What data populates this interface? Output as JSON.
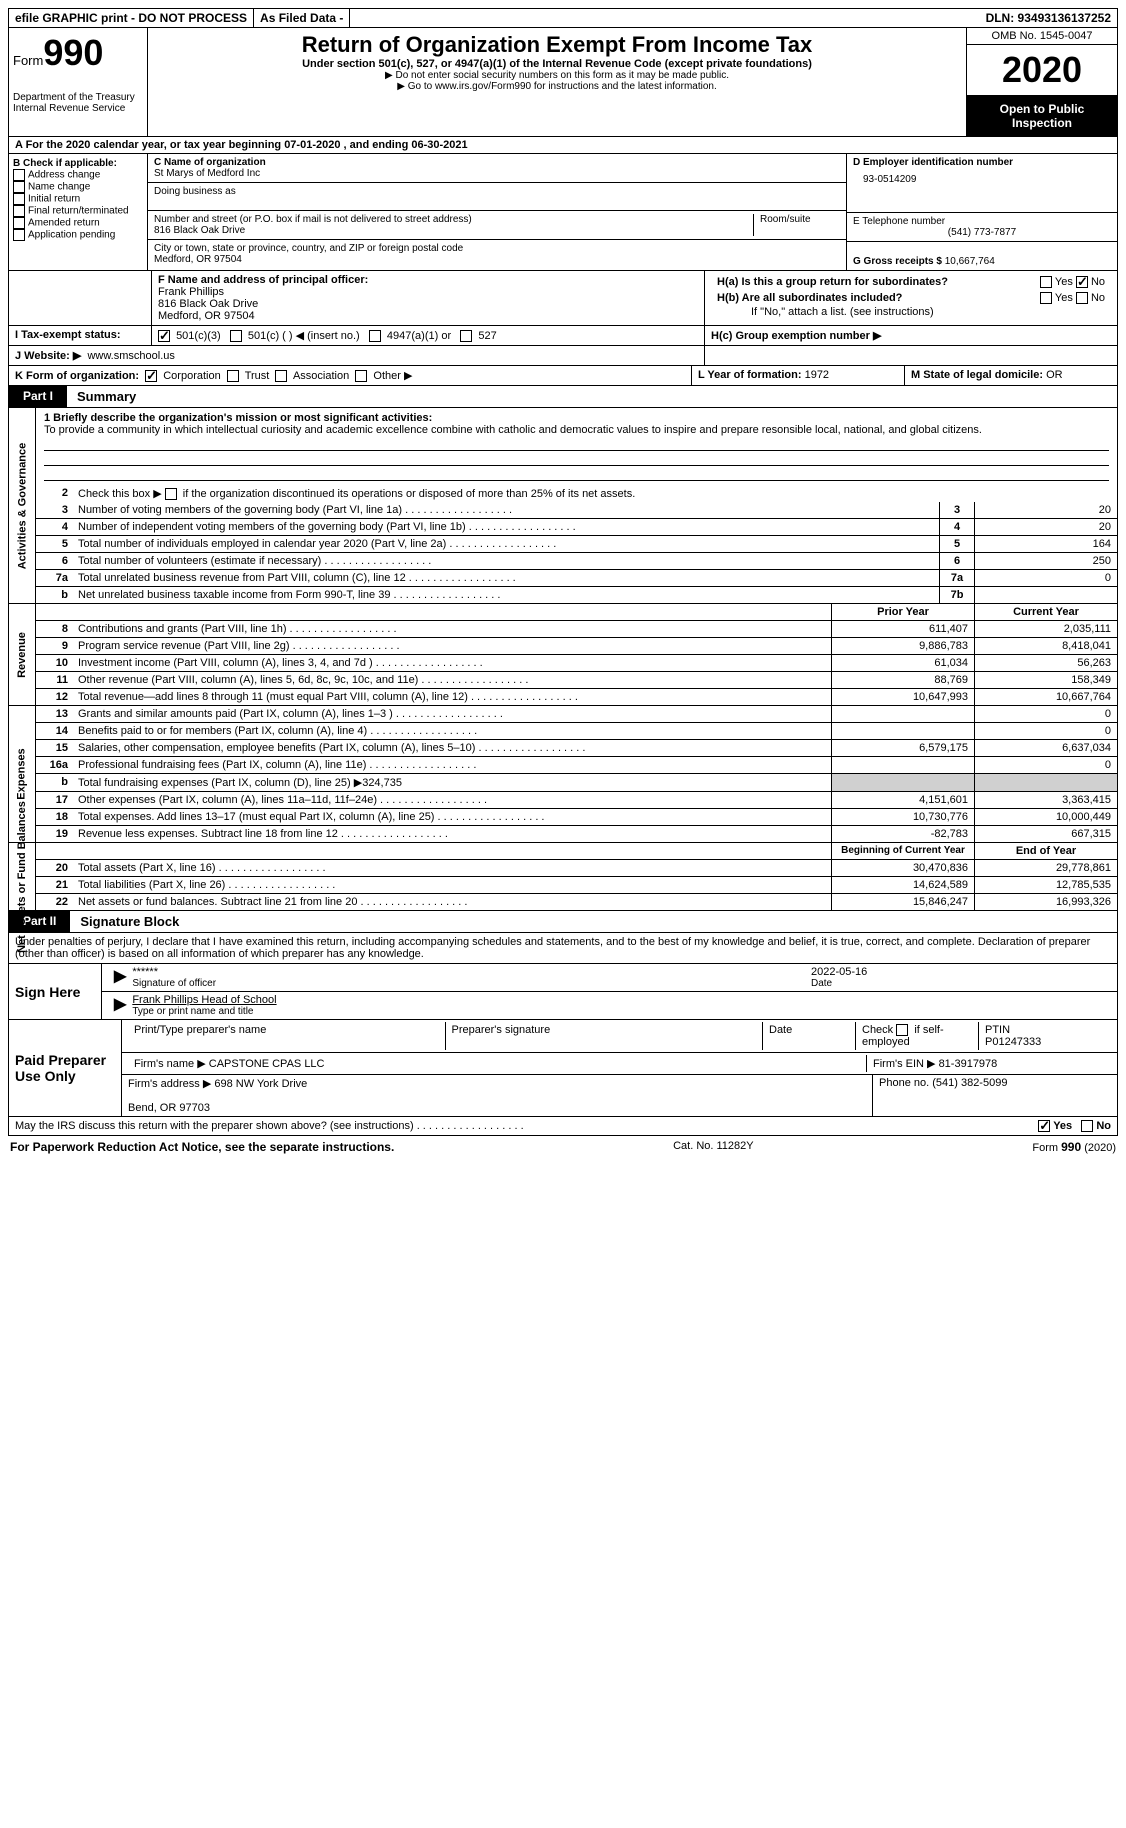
{
  "top": {
    "efile": "efile GRAPHIC print - DO NOT PROCESS",
    "asfiled": "As Filed Data -",
    "dln": "DLN: 93493136137252"
  },
  "header": {
    "form_label": "Form",
    "form_num": "990",
    "dept": "Department of the Treasury\nInternal Revenue Service",
    "title": "Return of Organization Exempt From Income Tax",
    "sub1": "Under section 501(c), 527, or 4947(a)(1) of the Internal Revenue Code (except private foundations)",
    "sub2": "▶ Do not enter social security numbers on this form as it may be made public.",
    "sub3_pre": "▶ Go to ",
    "sub3_link": "www.irs.gov/Form990",
    "sub3_post": " for instructions and the latest information.",
    "omb": "OMB No. 1545-0047",
    "year": "2020",
    "open": "Open to Public Inspection"
  },
  "rowA": "A   For the 2020 calendar year, or tax year beginning 07-01-2020   , and ending 06-30-2021",
  "boxB": {
    "title": "B Check if applicable:",
    "items": [
      "Address change",
      "Name change",
      "Initial return",
      "Final return/terminated",
      "Amended return",
      "Application pending"
    ]
  },
  "boxC": {
    "name_label": "C Name of organization",
    "name": "St Marys of Medford Inc",
    "dba_label": "Doing business as",
    "addr_label": "Number and street (or P.O. box if mail is not delivered to street address)",
    "room_label": "Room/suite",
    "addr": "816 Black Oak Drive",
    "city_label": "City or town, state or province, country, and ZIP or foreign postal code",
    "city": "Medford, OR  97504"
  },
  "boxD": {
    "label": "D Employer identification number",
    "value": "93-0514209"
  },
  "boxE": {
    "label": "E Telephone number",
    "value": "(541) 773-7877"
  },
  "boxG": {
    "label": "G Gross receipts $",
    "value": "10,667,764"
  },
  "boxF": {
    "label": "F  Name and address of principal officer:",
    "name": "Frank Phillips",
    "addr1": "816 Black Oak Drive",
    "addr2": "Medford, OR  97504"
  },
  "boxH": {
    "a": "H(a)  Is this a group return for subordinates?",
    "b": "H(b)  Are all subordinates included?",
    "note": "If \"No,\" attach a list. (see instructions)",
    "c": "H(c)  Group exemption number ▶",
    "yes": "Yes",
    "no": "No"
  },
  "rowI": {
    "label": "I   Tax-exempt status:",
    "opts": [
      "501(c)(3)",
      "501(c) (   ) ◀ (insert no.)",
      "4947(a)(1) or",
      "527"
    ]
  },
  "rowJ": {
    "label": "J   Website: ▶",
    "value": "www.smschool.us"
  },
  "rowK": {
    "label": "K Form of organization:",
    "opts": [
      "Corporation",
      "Trust",
      "Association",
      "Other ▶"
    ]
  },
  "rowL": {
    "label": "L Year of formation:",
    "value": "1972"
  },
  "rowM": {
    "label": "M State of legal domicile:",
    "value": "OR"
  },
  "part1": {
    "label": "Part I",
    "title": "Summary"
  },
  "mission": {
    "q": "1 Briefly describe the organization's mission or most significant activities:",
    "text": "To provide a community in which intellectual curiosity and academic excellence combine with catholic and democratic values to inspire and prepare resonsible local, national, and global citizens."
  },
  "gov_section": "Activities & Governance",
  "line2": "Check this box ▶      if the organization discontinued its operations or disposed of more than 25% of its net assets.",
  "gov_lines": [
    {
      "n": "3",
      "d": "Number of voting members of the governing body (Part VI, line 1a)",
      "c": "3",
      "v": "20"
    },
    {
      "n": "4",
      "d": "Number of independent voting members of the governing body (Part VI, line 1b)",
      "c": "4",
      "v": "20"
    },
    {
      "n": "5",
      "d": "Total number of individuals employed in calendar year 2020 (Part V, line 2a)",
      "c": "5",
      "v": "164"
    },
    {
      "n": "6",
      "d": "Total number of volunteers (estimate if necessary)",
      "c": "6",
      "v": "250"
    },
    {
      "n": "7a",
      "d": "Total unrelated business revenue from Part VIII, column (C), line 12",
      "c": "7a",
      "v": "0"
    },
    {
      "n": "b",
      "d": "Net unrelated business taxable income from Form 990-T, line 39",
      "c": "7b",
      "v": ""
    }
  ],
  "year_hdr": {
    "prior": "Prior Year",
    "current": "Current Year"
  },
  "rev_section": "Revenue",
  "rev_lines": [
    {
      "n": "8",
      "d": "Contributions and grants (Part VIII, line 1h)",
      "p": "611,407",
      "c": "2,035,111"
    },
    {
      "n": "9",
      "d": "Program service revenue (Part VIII, line 2g)",
      "p": "9,886,783",
      "c": "8,418,041"
    },
    {
      "n": "10",
      "d": "Investment income (Part VIII, column (A), lines 3, 4, and 7d )",
      "p": "61,034",
      "c": "56,263"
    },
    {
      "n": "11",
      "d": "Other revenue (Part VIII, column (A), lines 5, 6d, 8c, 9c, 10c, and 11e)",
      "p": "88,769",
      "c": "158,349"
    },
    {
      "n": "12",
      "d": "Total revenue—add lines 8 through 11 (must equal Part VIII, column (A), line 12)",
      "p": "10,647,993",
      "c": "10,667,764"
    }
  ],
  "exp_section": "Expenses",
  "exp_lines": [
    {
      "n": "13",
      "d": "Grants and similar amounts paid (Part IX, column (A), lines 1–3 )",
      "p": "",
      "c": "0"
    },
    {
      "n": "14",
      "d": "Benefits paid to or for members (Part IX, column (A), line 4)",
      "p": "",
      "c": "0"
    },
    {
      "n": "15",
      "d": "Salaries, other compensation, employee benefits (Part IX, column (A), lines 5–10)",
      "p": "6,579,175",
      "c": "6,637,034"
    },
    {
      "n": "16a",
      "d": "Professional fundraising fees (Part IX, column (A), line 11e)",
      "p": "",
      "c": "0"
    },
    {
      "n": "b",
      "d": "Total fundraising expenses (Part IX, column (D), line 25) ▶324,735",
      "p": "grey",
      "c": "grey"
    },
    {
      "n": "17",
      "d": "Other expenses (Part IX, column (A), lines 11a–11d, 11f–24e)",
      "p": "4,151,601",
      "c": "3,363,415"
    },
    {
      "n": "18",
      "d": "Total expenses. Add lines 13–17 (must equal Part IX, column (A), line 25)",
      "p": "10,730,776",
      "c": "10,000,449"
    },
    {
      "n": "19",
      "d": "Revenue less expenses. Subtract line 18 from line 12",
      "p": "-82,783",
      "c": "667,315"
    }
  ],
  "net_section": "Net Assets or Fund Balances",
  "net_hdr": {
    "begin": "Beginning of Current Year",
    "end": "End of Year"
  },
  "net_lines": [
    {
      "n": "20",
      "d": "Total assets (Part X, line 16)",
      "p": "30,470,836",
      "c": "29,778,861"
    },
    {
      "n": "21",
      "d": "Total liabilities (Part X, line 26)",
      "p": "14,624,589",
      "c": "12,785,535"
    },
    {
      "n": "22",
      "d": "Net assets or fund balances. Subtract line 21 from line 20",
      "p": "15,846,247",
      "c": "16,993,326"
    }
  ],
  "part2": {
    "label": "Part II",
    "title": "Signature Block"
  },
  "perjury": "Under penalties of perjury, I declare that I have examined this return, including accompanying schedules and statements, and to the best of my knowledge and belief, it is true, correct, and complete. Declaration of preparer (other than officer) is based on all information of which preparer has any knowledge.",
  "sign": {
    "here": "Sign Here",
    "stars": "******",
    "sig_label": "Signature of officer",
    "date": "2022-05-16",
    "date_label": "Date",
    "name": "Frank Phillips Head of School",
    "name_label": "Type or print name and title"
  },
  "paid": {
    "label": "Paid Preparer Use Only",
    "h1": "Print/Type preparer's name",
    "h2": "Preparer's signature",
    "h3": "Date",
    "h4_pre": "Check",
    "h4_post": "if self-employed",
    "ptin_label": "PTIN",
    "ptin": "P01247333",
    "firm_label": "Firm's name    ▶",
    "firm": "CAPSTONE CPAS LLC",
    "ein_label": "Firm's EIN ▶",
    "ein": "81-3917978",
    "addr_label": "Firm's address ▶",
    "addr": "698 NW York Drive\n\nBend, OR  97703",
    "phone_label": "Phone no.",
    "phone": "(541) 382-5099"
  },
  "discuss": "May the IRS discuss this return with the preparer shown above? (see instructions)",
  "footer": {
    "left": "For Paperwork Reduction Act Notice, see the separate instructions.",
    "mid": "Cat. No. 11282Y",
    "right_pre": "Form ",
    "right_b": "990",
    "right_post": " (2020)"
  }
}
